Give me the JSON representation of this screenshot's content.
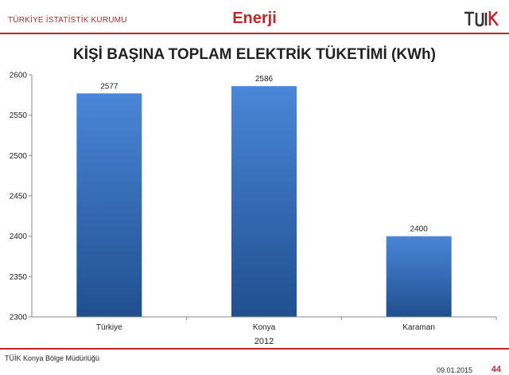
{
  "header": {
    "org": "TÜRKİYE İSTATİSTİK KURUMU",
    "section": "Enerji"
  },
  "footer": {
    "office": "TÜİK Konya Bölge Müdürlüğü",
    "date": "09.01.2015",
    "page": "44"
  },
  "colors": {
    "accent": "#c0272d",
    "bar_top": "#4a86d8",
    "bar_bottom": "#1f4f8f"
  },
  "chart_data": {
    "type": "bar",
    "title": "KİŞİ BAŞINA TOPLAM ELEKTRİK TÜKETİMİ (KWh)",
    "xlabel": "2012",
    "ylabel": "",
    "categories": [
      "Türkiye",
      "Konya",
      "Karaman"
    ],
    "values": [
      2577,
      2586,
      2400
    ],
    "data_labels": [
      "2577",
      "2586",
      "2400"
    ],
    "ylim": [
      2300,
      2600
    ],
    "yticks": [
      2300,
      2350,
      2400,
      2450,
      2500,
      2550,
      2600
    ],
    "grid": false,
    "legend": "none"
  }
}
